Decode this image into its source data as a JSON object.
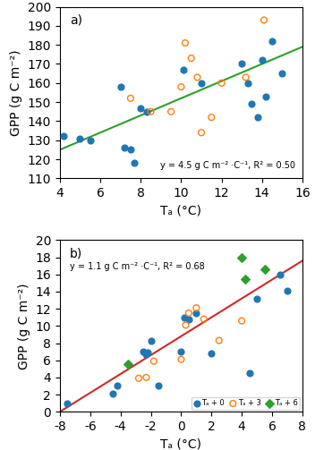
{
  "chart_data": [
    {
      "type": "scatter",
      "xlabel": "Tₐ (°C)",
      "ylabel": "GPP (g C m⁻²)",
      "annotations": [
        "a)",
        "y = 4.5 g C m⁻² ·C⁻¹, R² = 0.50"
      ],
      "xlim": [
        4,
        16
      ],
      "ylim": [
        110,
        200
      ],
      "xticks": [
        4,
        6,
        8,
        10,
        12,
        14,
        16
      ],
      "yticks": [
        110,
        120,
        130,
        140,
        150,
        160,
        170,
        180,
        190,
        200
      ],
      "series": [
        {
          "marker": "circle",
          "x": [
            4.2,
            5.0,
            5.5,
            7.0,
            7.2,
            7.5,
            7.7,
            8.0,
            8.3,
            10.1,
            11.0,
            13.0,
            13.3,
            13.5,
            13.8,
            14.0,
            14.2,
            14.5,
            15.0
          ],
          "values": [
            132,
            131,
            130,
            158,
            126,
            125,
            118,
            147,
            145,
            167,
            160,
            170,
            160,
            149,
            142,
            172,
            153,
            182,
            165
          ]
        },
        {
          "marker": "open circle",
          "x": [
            7.5,
            8.5,
            9.5,
            10.0,
            10.2,
            10.5,
            10.8,
            11.0,
            11.5,
            12.0,
            13.2,
            14.1
          ],
          "values": [
            152,
            145,
            145,
            158,
            181,
            173,
            163,
            134,
            142,
            160,
            163,
            193
          ]
        },
        {
          "type": "line",
          "x": [
            4,
            16
          ],
          "values": [
            125,
            179
          ]
        }
      ]
    },
    {
      "type": "scatter",
      "xlabel": "Tₐ (°C)",
      "ylabel": "GPP (g C m⁻²)",
      "annotations": [
        "b)",
        "y = 1.1 g C m⁻² ·C⁻¹, R² = 0.68"
      ],
      "xlim": [
        -8,
        8
      ],
      "ylim": [
        0,
        20
      ],
      "xticks": [
        -8,
        -6,
        -4,
        -2,
        0,
        2,
        4,
        6,
        8
      ],
      "yticks": [
        0,
        2,
        4,
        6,
        8,
        10,
        12,
        14,
        16,
        18,
        20
      ],
      "legend": "lower right",
      "series": [
        {
          "name": "Tₐ + 0",
          "marker": "circle",
          "x": [
            -7.5,
            -4.5,
            -4.2,
            -2.2,
            -2.3,
            -2.5,
            -2.0,
            -1.5,
            0.0,
            0.2,
            0.5,
            1.0,
            2.0,
            4.5,
            5.0,
            6.5,
            7.0
          ],
          "values": [
            1.0,
            2.1,
            3.0,
            6.9,
            6.7,
            7.0,
            8.3,
            3.0,
            7.0,
            11.0,
            10.8,
            11.5,
            6.8,
            4.5,
            13.2,
            16.0,
            14.1
          ]
        },
        {
          "name": "Tₐ + 3",
          "marker": "open circle",
          "x": [
            -2.8,
            -2.3,
            -1.8,
            0.0,
            0.3,
            0.5,
            1.0,
            1.5,
            2.5,
            4.0
          ],
          "values": [
            3.9,
            4.0,
            5.9,
            6.1,
            10.1,
            11.5,
            12.1,
            10.8,
            8.3,
            10.6
          ]
        },
        {
          "name": "Tₐ + 6",
          "marker": "diamond",
          "x": [
            -3.5,
            4.0,
            5.5,
            4.2
          ],
          "values": [
            5.5,
            18.0,
            16.6,
            15.5
          ]
        },
        {
          "type": "line",
          "x": [
            -8,
            8
          ],
          "values": [
            0,
            17.6
          ]
        }
      ]
    }
  ]
}
